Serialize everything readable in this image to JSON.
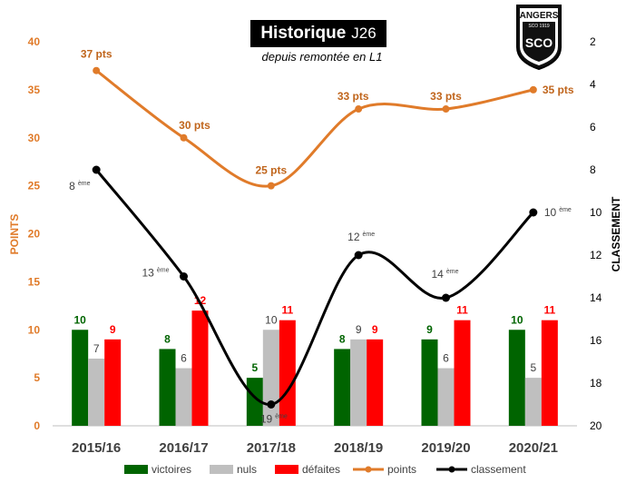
{
  "header": {
    "title": "Historique",
    "title_suffix": "J26",
    "subtitle": "depuis remontée en L1"
  },
  "logo": {
    "top_text": "ANGERS",
    "badge_text": "SCO 1919",
    "letters": "SCO"
  },
  "colors": {
    "victoires": "#006400",
    "nuls": "#bfbfbf",
    "defaites": "#ff0000",
    "points": "#e07b2a",
    "classement": "#000000",
    "left_axis": "#e07b2a"
  },
  "chart_data": {
    "type": "bar+line",
    "categories": [
      "2015/16",
      "2016/17",
      "2017/18",
      "2018/19",
      "2019/20",
      "2020/21"
    ],
    "series": [
      {
        "name": "victoires",
        "type": "bar",
        "axis": "left",
        "values": [
          10,
          8,
          5,
          8,
          9,
          10
        ]
      },
      {
        "name": "nuls",
        "type": "bar",
        "axis": "left",
        "values": [
          7,
          6,
          10,
          9,
          6,
          5
        ]
      },
      {
        "name": "défaites",
        "type": "bar",
        "axis": "left",
        "values": [
          9,
          12,
          11,
          9,
          11,
          11
        ]
      },
      {
        "name": "points",
        "type": "line",
        "axis": "left",
        "values": [
          37,
          30,
          25,
          33,
          33,
          35
        ],
        "labels": [
          "37 pts",
          "30 pts",
          "25 pts",
          "33 pts",
          "33 pts",
          "35 pts"
        ]
      },
      {
        "name": "classement",
        "type": "line",
        "axis": "right",
        "values": [
          8,
          13,
          19,
          12,
          14,
          10
        ],
        "labels": [
          "8",
          "13",
          "19",
          "12",
          "14",
          "10"
        ],
        "label_suffix": "ème"
      }
    ],
    "y_left": {
      "label": "POINTS",
      "min": 0,
      "max": 40,
      "ticks": [
        0,
        5,
        10,
        15,
        20,
        25,
        30,
        35,
        40
      ]
    },
    "y_right": {
      "label": "CLASSEMENT",
      "min": 2,
      "max": 20,
      "inverted": true,
      "ticks": [
        2,
        4,
        6,
        8,
        10,
        12,
        14,
        16,
        18,
        20
      ]
    },
    "legend": [
      "victoires",
      "nuls",
      "défaites",
      "points",
      "classement"
    ],
    "legend_position": "bottom"
  }
}
